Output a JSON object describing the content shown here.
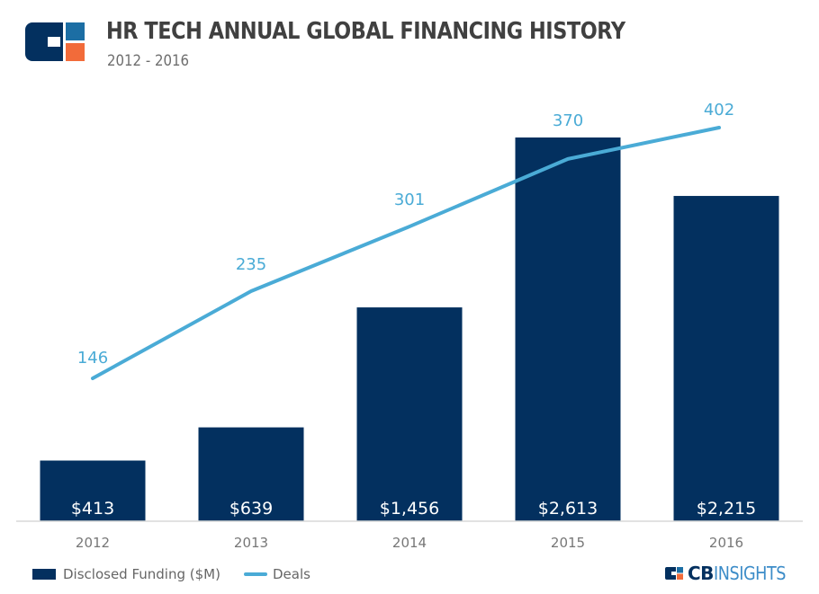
{
  "header": {
    "title": "HR TECH ANNUAL GLOBAL FINANCING HISTORY",
    "subtitle": "2012 - 2016",
    "logo": "cb-insights-logo-icon"
  },
  "legend": {
    "bars_label": "Disclosed Funding ($M)",
    "line_label": "Deals"
  },
  "brand": {
    "cb": "CB",
    "insights": "INSIGHTS"
  },
  "colors": {
    "bar": "#03305f",
    "line": "#4aabd6",
    "line_label": "#4aabd6",
    "axis_label": "#777777",
    "baseline": "#d9d9d9",
    "logo_dark": "#03305f",
    "logo_blue": "#1c6ea4",
    "logo_orange": "#f26b3a"
  },
  "chart_data": {
    "type": "bar",
    "title": "HR TECH ANNUAL GLOBAL FINANCING HISTORY",
    "subtitle": "2012 - 2016",
    "categories": [
      "2012",
      "2013",
      "2014",
      "2015",
      "2016"
    ],
    "series": [
      {
        "name": "Disclosed Funding ($M)",
        "type": "bar",
        "values": [
          413,
          639,
          1456,
          2613,
          2215
        ],
        "labels": [
          "$413",
          "$639",
          "$1,456",
          "$2,613",
          "$2,215"
        ]
      },
      {
        "name": "Deals",
        "type": "line",
        "values": [
          146,
          235,
          301,
          370,
          402
        ],
        "labels": [
          "146",
          "235",
          "301",
          "370",
          "402"
        ]
      }
    ],
    "xlabel": "",
    "ylabel": "",
    "bar_ylim": [
      0,
      2613
    ],
    "line_ylim": [
      0,
      402
    ],
    "grid": false,
    "legend_position": "bottom-left"
  }
}
